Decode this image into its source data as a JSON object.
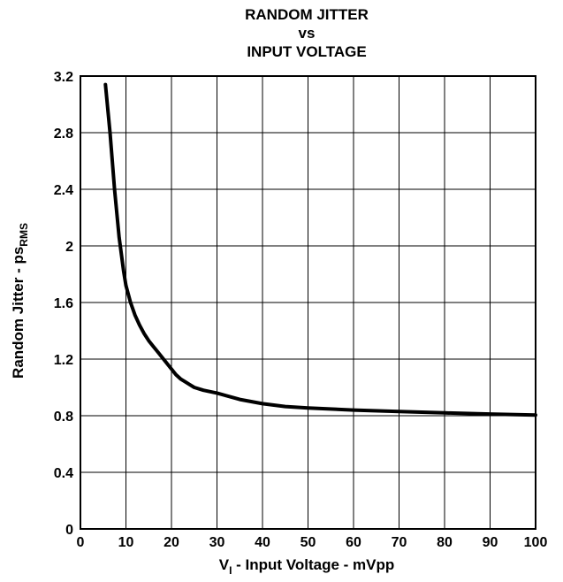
{
  "chart_data": {
    "type": "line",
    "title": [
      "RANDOM JITTER",
      "vs",
      "INPUT VOLTAGE"
    ],
    "xlabel": {
      "main": "V",
      "sub": "I",
      "rest": " - Input Voltage - mVpp"
    },
    "ylabel": {
      "main": "Random Jitter - ps",
      "sub": "RMS"
    },
    "xlim": [
      0,
      100
    ],
    "ylim": [
      0,
      3.2
    ],
    "x_ticks": [
      "0",
      "10",
      "20",
      "30",
      "40",
      "50",
      "60",
      "70",
      "80",
      "90",
      "100"
    ],
    "y_ticks": [
      "0",
      "0.4",
      "0.8",
      "1.2",
      "1.6",
      "2",
      "2.4",
      "2.8",
      "3.2"
    ],
    "grid": true,
    "series": [
      {
        "x": [
          5.5,
          6.5,
          7.5,
          8.5,
          9.5,
          10,
          11,
          12,
          13,
          14,
          15,
          16,
          17,
          18,
          19,
          20,
          21,
          22,
          23,
          24,
          25,
          27,
          30,
          35,
          40,
          45,
          50,
          60,
          70,
          80,
          90,
          100
        ],
        "y": [
          3.14,
          2.8,
          2.4,
          2.06,
          1.82,
          1.72,
          1.6,
          1.51,
          1.44,
          1.38,
          1.33,
          1.29,
          1.25,
          1.21,
          1.17,
          1.13,
          1.09,
          1.06,
          1.04,
          1.02,
          1.0,
          0.98,
          0.96,
          0.915,
          0.885,
          0.865,
          0.855,
          0.84,
          0.83,
          0.82,
          0.812,
          0.805
        ]
      }
    ]
  }
}
